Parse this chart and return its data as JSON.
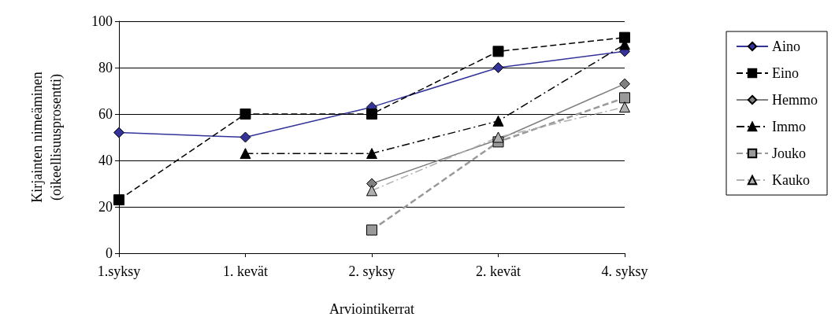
{
  "chart_data": {
    "type": "line",
    "xlabel": "Arviointikerrat",
    "ylabel": "Kirjainten nimeäminen\n(oikeellisuusprosentti)",
    "categories": [
      "1.syksy",
      "1. kevät",
      "2. syksy",
      "2. kevät",
      "4. syksy"
    ],
    "ylim": [
      0,
      100
    ],
    "yticks": [
      0,
      20,
      40,
      60,
      80,
      100
    ],
    "grid": "y",
    "legend": "right",
    "series": [
      {
        "name": "Aino",
        "color": "#333399",
        "marker": "diamond",
        "line_style": "solid",
        "values": [
          52,
          50,
          63,
          80,
          87
        ]
      },
      {
        "name": "Eino",
        "color": "#000000",
        "marker": "square",
        "line_style": "dashed",
        "values": [
          23,
          60,
          60,
          87,
          93
        ]
      },
      {
        "name": "Hemmo",
        "color": "#808080",
        "marker": "diamond",
        "line_style": "solid",
        "values": [
          null,
          null,
          30,
          49,
          73
        ]
      },
      {
        "name": "Immo",
        "color": "#000000",
        "marker": "triangle",
        "line_style": "dashdot",
        "values": [
          null,
          43,
          43,
          57,
          90
        ]
      },
      {
        "name": "Jouko",
        "color": "#999999",
        "marker": "square",
        "line_style": "dashed",
        "values": [
          null,
          null,
          10,
          48,
          67
        ]
      },
      {
        "name": "Kauko",
        "color": "#b0b0b0",
        "marker": "triangle",
        "line_style": "dashdot",
        "values": [
          null,
          null,
          27,
          50,
          63
        ]
      }
    ]
  }
}
